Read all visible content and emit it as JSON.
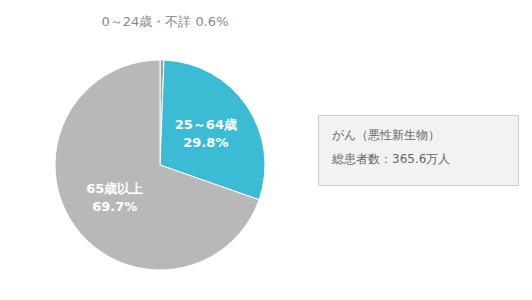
{
  "chart_data": {
    "type": "pie",
    "title": "0～24歳・不詳 0.6%",
    "categories": [
      null,
      "25～64歳",
      "65歳以上"
    ],
    "values": [
      0.6,
      29.8,
      69.7
    ],
    "value_labels": [
      null,
      "29.8%",
      "69.7%"
    ],
    "data_labels": true,
    "colors": [
      "#9e9e9e",
      "#3bbcd4",
      "#b8b8b8"
    ],
    "annotations": [
      "がん（悪性新生物）",
      "総患者数：365.6万人"
    ]
  }
}
